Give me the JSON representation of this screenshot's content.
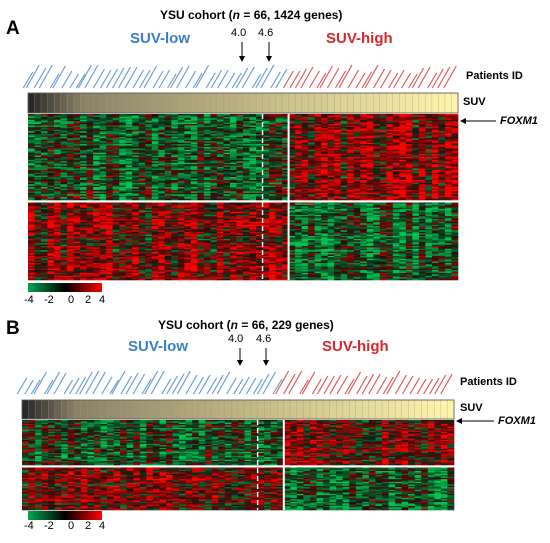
{
  "chart_data": [
    {
      "type": "heatmap",
      "panel_label": "A",
      "title_prefix": "YSU cohort (",
      "title_n": "n",
      "title_suffix": " = 66, 1424 genes)",
      "group_low_label": "SUV-low",
      "group_high_label": "SUV-high",
      "cutoffs": [
        "4.0",
        "4.6"
      ],
      "row_label_patients": "Patients ID",
      "row_label_suv": "SUV",
      "gene_label": "FOXM1",
      "low_count": 40,
      "high_count": 26,
      "legend_ticks": [
        "-4",
        "-2",
        "0",
        "2",
        "4"
      ],
      "legend_colors": [
        "#00a651",
        "#000000",
        "#ff0000"
      ]
    },
    {
      "type": "heatmap",
      "panel_label": "B",
      "title_prefix": "YSU cohort (",
      "title_n": "n",
      "title_suffix": " = 66, 229 genes)",
      "group_low_label": "SUV-low",
      "group_high_label": "SUV-high",
      "cutoffs": [
        "4.0",
        "4.6"
      ],
      "row_label_patients": "Patients ID",
      "row_label_suv": "SUV",
      "gene_label": "FOXM1",
      "low_count": 40,
      "high_count": 26,
      "legend_ticks": [
        "-4",
        "-2",
        "0",
        "2",
        "4"
      ],
      "legend_colors": [
        "#00a651",
        "#000000",
        "#ff0000"
      ]
    }
  ]
}
